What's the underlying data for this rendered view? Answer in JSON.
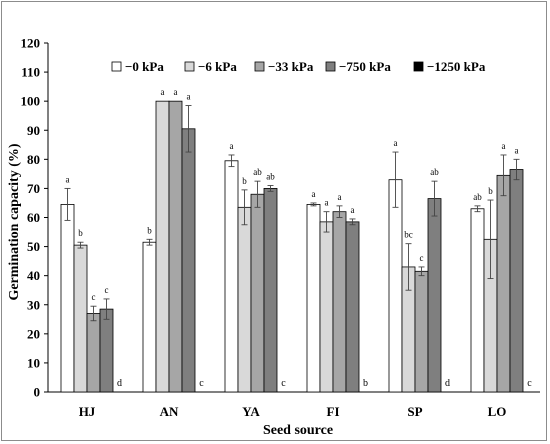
{
  "chart_data": {
    "type": "bar",
    "title": "",
    "xlabel": "Seed source",
    "ylabel": "Germination capacity (%)",
    "ylim": [
      0,
      120
    ],
    "yticks": [
      "0",
      "10",
      "20",
      "30",
      "40",
      "50",
      "60",
      "70",
      "80",
      "90",
      "100",
      "110",
      "120"
    ],
    "grid": false,
    "legend_position": "top",
    "categories": [
      "HJ",
      "AN",
      "YA",
      "FI",
      "SP",
      "LO"
    ],
    "series": [
      {
        "name": "−0 kPa",
        "color": "#ffffff",
        "values": [
          64.5,
          51.5,
          79.5,
          64.5,
          73,
          63
        ],
        "errors": [
          5.5,
          1,
          2,
          0.5,
          9.5,
          1
        ],
        "letters": [
          "a",
          "b",
          "a",
          "a",
          "a",
          "ab"
        ]
      },
      {
        "name": "−6 kPa",
        "color": "#d9d9d9",
        "values": [
          50.5,
          100,
          63.5,
          58.5,
          43,
          52.5
        ],
        "errors": [
          1,
          0,
          6,
          3.5,
          8,
          13.5
        ],
        "letters": [
          "b",
          "a",
          "b",
          "a",
          "bc",
          "b"
        ]
      },
      {
        "name": "−33 kPa",
        "color": "#a6a6a6",
        "values": [
          27,
          100,
          68,
          62,
          41.5,
          74.5
        ],
        "errors": [
          2.5,
          0,
          4.5,
          2,
          1.5,
          7
        ],
        "letters": [
          "c",
          "a",
          "ab",
          "a",
          "c",
          "a"
        ]
      },
      {
        "name": "−750 kPa",
        "color": "#7f7f7f",
        "values": [
          28.5,
          90.5,
          70,
          58.5,
          66.5,
          76.5
        ],
        "errors": [
          3.5,
          8,
          1,
          1,
          6,
          3.5
        ],
        "letters": [
          "c",
          "a",
          "ab",
          "a",
          "ab",
          "a"
        ]
      },
      {
        "name": "−1250 kPa",
        "color": "#000000",
        "values": [
          0,
          0,
          0,
          0,
          0,
          0
        ],
        "errors": [
          0,
          0,
          0,
          0,
          0,
          0
        ],
        "letters": [
          "d",
          "c",
          "c",
          "b",
          "d",
          "c"
        ]
      }
    ]
  }
}
